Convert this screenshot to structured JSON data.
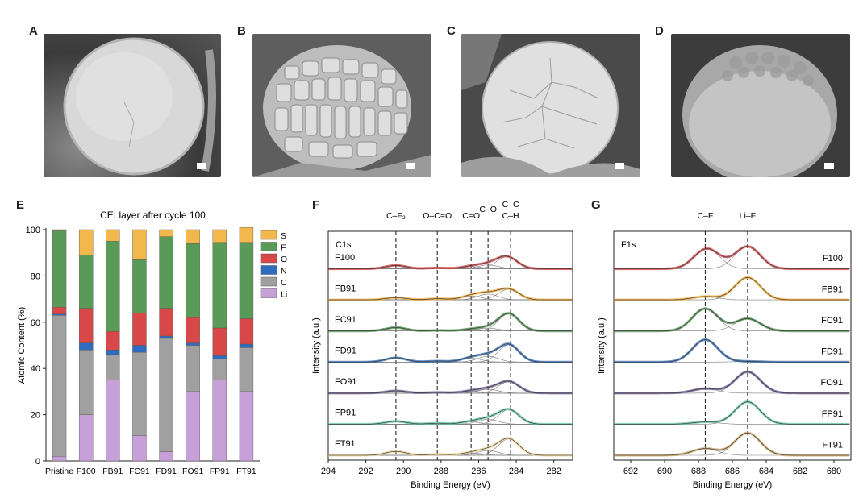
{
  "panels": {
    "A": "A",
    "B": "B",
    "C": "C",
    "D": "D",
    "E": "E",
    "F": "F",
    "G": "G"
  },
  "sem_images": [
    {
      "id": "A",
      "style": "smooth-dome",
      "bg": "#5a5a5a",
      "particle": "#dcdcdc"
    },
    {
      "id": "B",
      "style": "fragmented",
      "bg": "#6e6e6e",
      "particle": "#d0d0d0"
    },
    {
      "id": "C",
      "style": "cracked-dome",
      "bg": "#4a4a4a",
      "particle": "#e2e2e2"
    },
    {
      "id": "D",
      "style": "rough-dome",
      "bg": "#3e3e3e",
      "particle": "#b8b8b8"
    }
  ],
  "chart_data": [
    {
      "type": "bar",
      "stacked": true,
      "title": "CEI layer after cycle 100",
      "xlabel": "",
      "ylabel": "Atomic Content (%)",
      "ylim": [
        0,
        100
      ],
      "yticks": [
        0,
        20,
        40,
        60,
        80,
        100
      ],
      "categories": [
        "Pristine",
        "F100",
        "FB91",
        "FC91",
        "FD91",
        "FO91",
        "FP91",
        "FT91"
      ],
      "legend_placement": "top-right",
      "series": [
        {
          "name": "Li",
          "color": "#c8a0d8",
          "values": [
            2,
            20,
            35,
            11,
            4,
            30,
            35,
            30
          ]
        },
        {
          "name": "C",
          "color": "#a0a0a0",
          "values": [
            61,
            28,
            11,
            36,
            49,
            20,
            9,
            19
          ]
        },
        {
          "name": "N",
          "color": "#2e6cc0",
          "values": [
            0.5,
            3,
            2,
            3,
            1,
            1,
            1.5,
            1.5
          ]
        },
        {
          "name": "O",
          "color": "#d84848",
          "values": [
            3,
            15,
            8,
            14,
            12,
            11,
            12,
            11
          ]
        },
        {
          "name": "F",
          "color": "#5a9a58",
          "values": [
            33,
            23,
            39,
            23,
            31,
            32,
            37,
            33
          ]
        },
        {
          "name": "S",
          "color": "#f2b84c",
          "values": [
            0.5,
            11,
            5,
            13,
            3,
            6,
            5.5,
            6.5
          ]
        }
      ]
    },
    {
      "type": "line",
      "title": "",
      "label": "C1s",
      "xlabel": "Binding Energy (eV)",
      "ylabel": "Intensity (a.u.)",
      "xlim": [
        294,
        281
      ],
      "xticks": [
        294,
        292,
        290,
        288,
        286,
        284,
        282
      ],
      "reference_lines": [
        {
          "x": 290.4,
          "label": "C–F₂"
        },
        {
          "x": 288.2,
          "label": "O–C=O"
        },
        {
          "x": 286.4,
          "label": "C=O"
        },
        {
          "x": 285.5,
          "label": "C–O"
        },
        {
          "x": 284.3,
          "label": "C–C\nC–H"
        }
      ],
      "series": [
        {
          "name": "F100",
          "color": "#cc4040",
          "peaks": [
            [
              290.4,
              0.18
            ],
            [
              288.2,
              0.05
            ],
            [
              286.4,
              0.12
            ],
            [
              285.5,
              0.2
            ],
            [
              284.5,
              0.62
            ]
          ]
        },
        {
          "name": "FB91",
          "color": "#f0a830",
          "peaks": [
            [
              290.4,
              0.12
            ],
            [
              288.2,
              0.06
            ],
            [
              286.4,
              0.2
            ],
            [
              285.5,
              0.3
            ],
            [
              284.4,
              0.55
            ]
          ]
        },
        {
          "name": "FC91",
          "color": "#4a8a48",
          "peaks": [
            [
              290.4,
              0.18
            ],
            [
              288.2,
              0.03
            ],
            [
              286.4,
              0.08
            ],
            [
              285.5,
              0.15
            ],
            [
              284.4,
              0.9
            ]
          ]
        },
        {
          "name": "FD91",
          "color": "#2f68b0",
          "peaks": [
            [
              290.4,
              0.22
            ],
            [
              288.2,
              0.05
            ],
            [
              286.4,
              0.2
            ],
            [
              285.5,
              0.3
            ],
            [
              284.4,
              0.9
            ]
          ]
        },
        {
          "name": "FO91",
          "color": "#6a5a90",
          "peaks": [
            [
              290.4,
              0.12
            ],
            [
              288.2,
              0.04
            ],
            [
              286.4,
              0.1
            ],
            [
              285.5,
              0.2
            ],
            [
              284.4,
              0.6
            ]
          ]
        },
        {
          "name": "FP91",
          "color": "#5cc0a0",
          "peaks": [
            [
              290.4,
              0.15
            ],
            [
              288.2,
              0.05
            ],
            [
              286.4,
              0.12
            ],
            [
              285.5,
              0.25
            ],
            [
              284.4,
              0.75
            ]
          ]
        },
        {
          "name": "FT91",
          "color": "#e8d090",
          "peaks": [
            [
              290.4,
              0.2
            ],
            [
              288.2,
              0.05
            ],
            [
              286.4,
              0.12
            ],
            [
              285.5,
              0.25
            ],
            [
              284.4,
              0.85
            ]
          ]
        }
      ]
    },
    {
      "type": "line",
      "title": "",
      "label": "F1s",
      "xlabel": "Binding Energy (eV)",
      "ylabel": "Intensity (a.u.)",
      "xlim": [
        693,
        679
      ],
      "xticks": [
        692,
        690,
        688,
        686,
        684,
        682,
        680
      ],
      "reference_lines": [
        {
          "x": 687.6,
          "label": "C–F"
        },
        {
          "x": 685.1,
          "label": "Li–F"
        }
      ],
      "series": [
        {
          "name": "F100",
          "color": "#cc4040",
          "peaks": [
            [
              687.5,
              0.9
            ],
            [
              685.1,
              1.0
            ]
          ]
        },
        {
          "name": "FB91",
          "color": "#f0a830",
          "peaks": [
            [
              687.6,
              0.15
            ],
            [
              685.1,
              1.0
            ]
          ]
        },
        {
          "name": "FC91",
          "color": "#4a8a48",
          "peaks": [
            [
              687.6,
              1.0
            ],
            [
              685.1,
              0.55
            ]
          ]
        },
        {
          "name": "FD91",
          "color": "#2f68b0",
          "peaks": [
            [
              687.6,
              1.0
            ],
            [
              685.1,
              0.03
            ]
          ]
        },
        {
          "name": "FO91",
          "color": "#6a5a90",
          "peaks": [
            [
              687.6,
              0.2
            ],
            [
              685.1,
              0.95
            ]
          ]
        },
        {
          "name": "FP91",
          "color": "#5cc0a0",
          "peaks": [
            [
              687.6,
              0.1
            ],
            [
              685.1,
              1.0
            ]
          ]
        },
        {
          "name": "FT91",
          "color": "#c8a060",
          "peaks": [
            [
              687.6,
              0.3
            ],
            [
              685.1,
              1.0
            ]
          ]
        }
      ]
    }
  ]
}
